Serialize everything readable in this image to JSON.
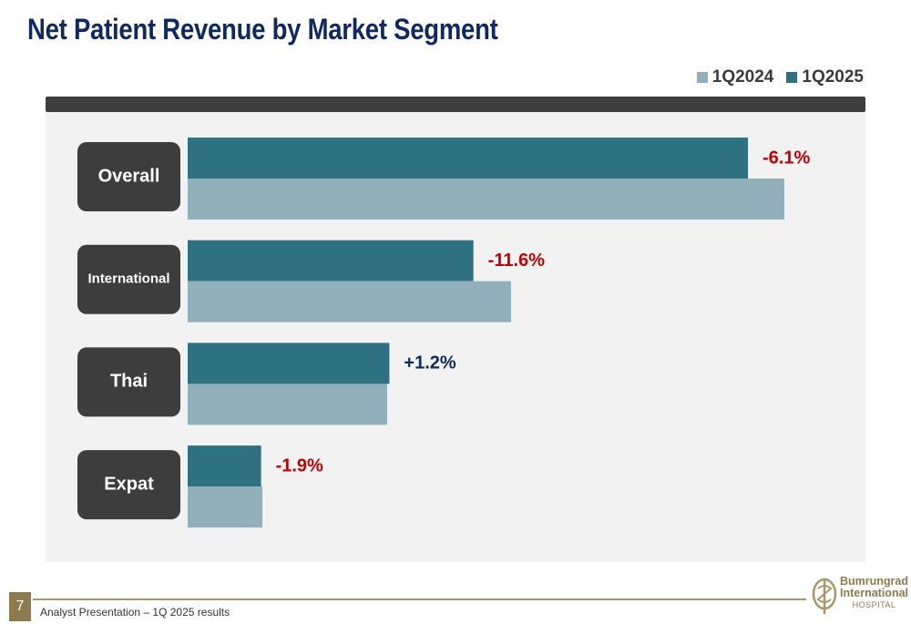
{
  "title": "Net Patient Revenue by Market Segment",
  "legend": [
    {
      "label": "1Q2024",
      "color": "#91b0b9"
    },
    {
      "label": "1Q2025",
      "color": "#2d7183"
    }
  ],
  "chart_data": {
    "type": "bar",
    "orientation": "horizontal",
    "categories": [
      "Overall",
      "International",
      "Thai",
      "Expat"
    ],
    "series": [
      {
        "name": "1Q2025",
        "values": [
          100,
          51,
          36,
          13.1
        ],
        "color": "#2d7183"
      },
      {
        "name": "1Q2024",
        "values": [
          106.5,
          57.7,
          35.6,
          13.35
        ],
        "color": "#91b0b9"
      }
    ],
    "change_labels": [
      "-6.1%",
      "-11.6%",
      "+1.2%",
      "-1.9%"
    ],
    "change_colors": [
      "#c00000",
      "#c00000",
      "#0f2a5f",
      "#c00000"
    ],
    "xlim": [
      0,
      120
    ],
    "grid": false,
    "legend_position": "top-right"
  },
  "footer": {
    "page_number": "7",
    "text": "Analyst Presentation – 1Q 2025 results",
    "logo_line1": "Bumrungrad",
    "logo_line2": "International",
    "logo_line3": "HOSPITAL"
  }
}
